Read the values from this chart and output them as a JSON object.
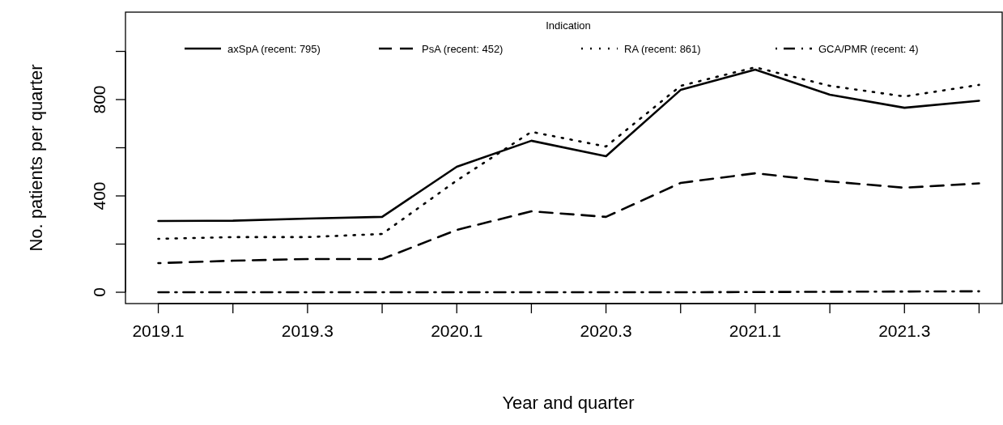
{
  "chart_data": {
    "type": "line",
    "xlabel": "Year and quarter",
    "ylabel": "No. patients per quarter",
    "legend_title": "Indication",
    "legend": "top",
    "grid": false,
    "categories": [
      "2019.1",
      null,
      "2019.3",
      null,
      "2020.1",
      null,
      "2020.3",
      null,
      "2021.1",
      null,
      "2021.3",
      null
    ],
    "ylim": [
      -47,
      1163
    ],
    "yticks": [
      0,
      {
        "value": 200,
        "label": null
      },
      400,
      {
        "value": 600,
        "label": null
      },
      800,
      {
        "value": 1000,
        "label": null
      }
    ],
    "series": [
      {
        "name": "axSpA (recent: 795)",
        "color": "#000000",
        "line_style": "solid",
        "values": [
          296,
          297,
          306,
          313,
          521,
          629,
          565,
          840,
          924,
          820,
          766,
          795
        ]
      },
      {
        "name": "PsA (recent: 452)",
        "color": "#000000",
        "line_style": "dashed",
        "values": [
          121,
          131,
          138,
          138,
          259,
          336,
          313,
          454,
          494,
          460,
          434,
          452
        ]
      },
      {
        "name": "RA (recent: 861)",
        "color": "#000000",
        "line_style": "dotted",
        "values": [
          222,
          229,
          229,
          242,
          464,
          666,
          605,
          857,
          934,
          857,
          813,
          861
        ]
      },
      {
        "name": "GCA/PMR (recent: 4)",
        "color": "#000000",
        "line_style": "dashdot",
        "values": [
          0,
          0,
          0,
          0,
          0,
          0,
          0,
          0,
          1,
          2,
          3,
          4
        ]
      }
    ]
  }
}
